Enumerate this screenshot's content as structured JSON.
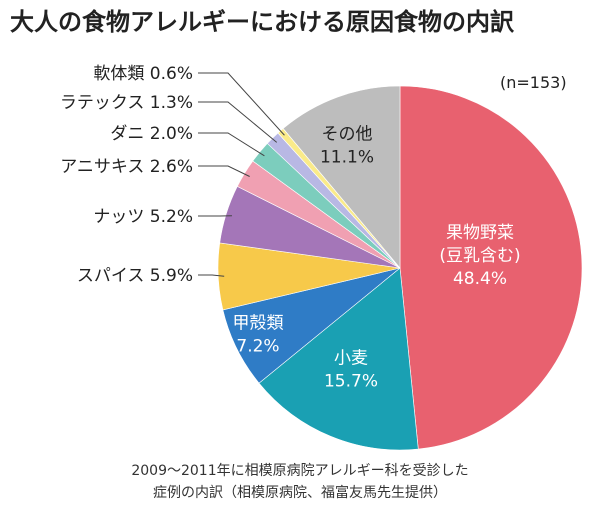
{
  "chart_data": {
    "type": "pie",
    "title": "大人の食物アレルギーにおける原因食物の内訳",
    "sample_note": "(n=153)",
    "caption": [
      "2009〜2011年に相模原病院アレルギー科を受診した",
      "症例の内訳（相模原病院、福富友馬先生提供）"
    ],
    "slices": [
      {
        "lines": [
          "果物野菜",
          "(豆乳含む)"
        ],
        "value_label": "48.4%",
        "value": 48.4,
        "color": "#e8616f",
        "text_color": "#ffffff",
        "label_position": "inside"
      },
      {
        "lines": [
          "小麦"
        ],
        "value_label": "15.7%",
        "value": 15.7,
        "color": "#1aa0b3",
        "text_color": "#ffffff",
        "label_position": "inside"
      },
      {
        "lines": [
          "甲殻類"
        ],
        "value_label": "7.2%",
        "value": 7.2,
        "color": "#2f7cc6",
        "text_color": "#ffffff",
        "label_position": "inside"
      },
      {
        "lines": [
          "スパイス"
        ],
        "value_label": "5.9%",
        "value": 5.9,
        "color": "#f7c94a",
        "text_color": "#222222",
        "label_position": "outside"
      },
      {
        "lines": [
          "ナッツ"
        ],
        "value_label": "5.2%",
        "value": 5.2,
        "color": "#a476b8",
        "text_color": "#222222",
        "label_position": "outside"
      },
      {
        "lines": [
          "アニサキス"
        ],
        "value_label": "2.6%",
        "value": 2.6,
        "color": "#f0a0b2",
        "text_color": "#222222",
        "label_position": "outside"
      },
      {
        "lines": [
          "ダニ"
        ],
        "value_label": "2.0%",
        "value": 2.0,
        "color": "#7ccdbd",
        "text_color": "#222222",
        "label_position": "outside"
      },
      {
        "lines": [
          "ラテックス"
        ],
        "value_label": "1.3%",
        "value": 1.3,
        "color": "#b8b8e4",
        "text_color": "#222222",
        "label_position": "outside"
      },
      {
        "lines": [
          "軟体類"
        ],
        "value_label": "0.6%",
        "value": 0.6,
        "color": "#faeb8a",
        "text_color": "#222222",
        "label_position": "outside"
      },
      {
        "lines": [
          "その他"
        ],
        "value_label": "11.1%",
        "value": 11.1,
        "color": "#bdbdbd",
        "text_color": "#222222",
        "label_position": "inside"
      }
    ]
  }
}
